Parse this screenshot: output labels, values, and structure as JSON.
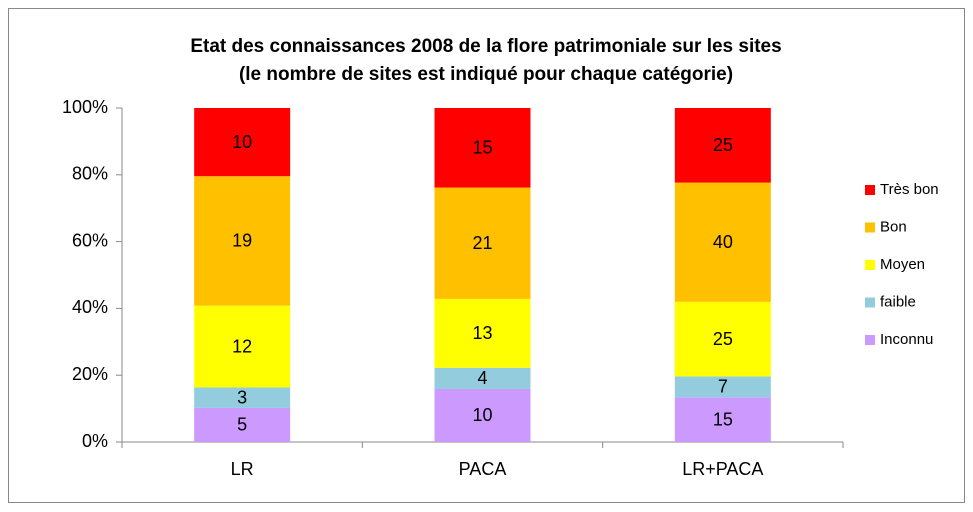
{
  "chart_data": {
    "type": "bar",
    "stacking": "percent",
    "title": [
      "Etat des connaissances 2008 de la flore patrimoniale sur les sites",
      "(le nombre de sites est indiqué pour chaque catégorie)"
    ],
    "categories": [
      "LR",
      "PACA",
      "LR+PACA"
    ],
    "series": [
      {
        "name": "Inconnu",
        "color": "#cc99ff",
        "values": [
          5,
          10,
          15
        ]
      },
      {
        "name": "faible",
        "color": "#93cddd",
        "values": [
          3,
          4,
          7
        ]
      },
      {
        "name": "Moyen",
        "color": "#ffff00",
        "values": [
          12,
          13,
          25
        ]
      },
      {
        "name": "Bon",
        "color": "#ffc000",
        "values": [
          19,
          21,
          40
        ]
      },
      {
        "name": "Très bon",
        "color": "#ff0000",
        "values": [
          10,
          15,
          25
        ]
      }
    ],
    "ylim": [
      0,
      100
    ],
    "yticks": [
      {
        "value": 0,
        "label": "0%"
      },
      {
        "value": 20,
        "label": "20%"
      },
      {
        "value": 40,
        "label": "40%"
      },
      {
        "value": 60,
        "label": "60%"
      },
      {
        "value": 80,
        "label": "80%"
      },
      {
        "value": 100,
        "label": "100%"
      }
    ],
    "legend": "right"
  }
}
